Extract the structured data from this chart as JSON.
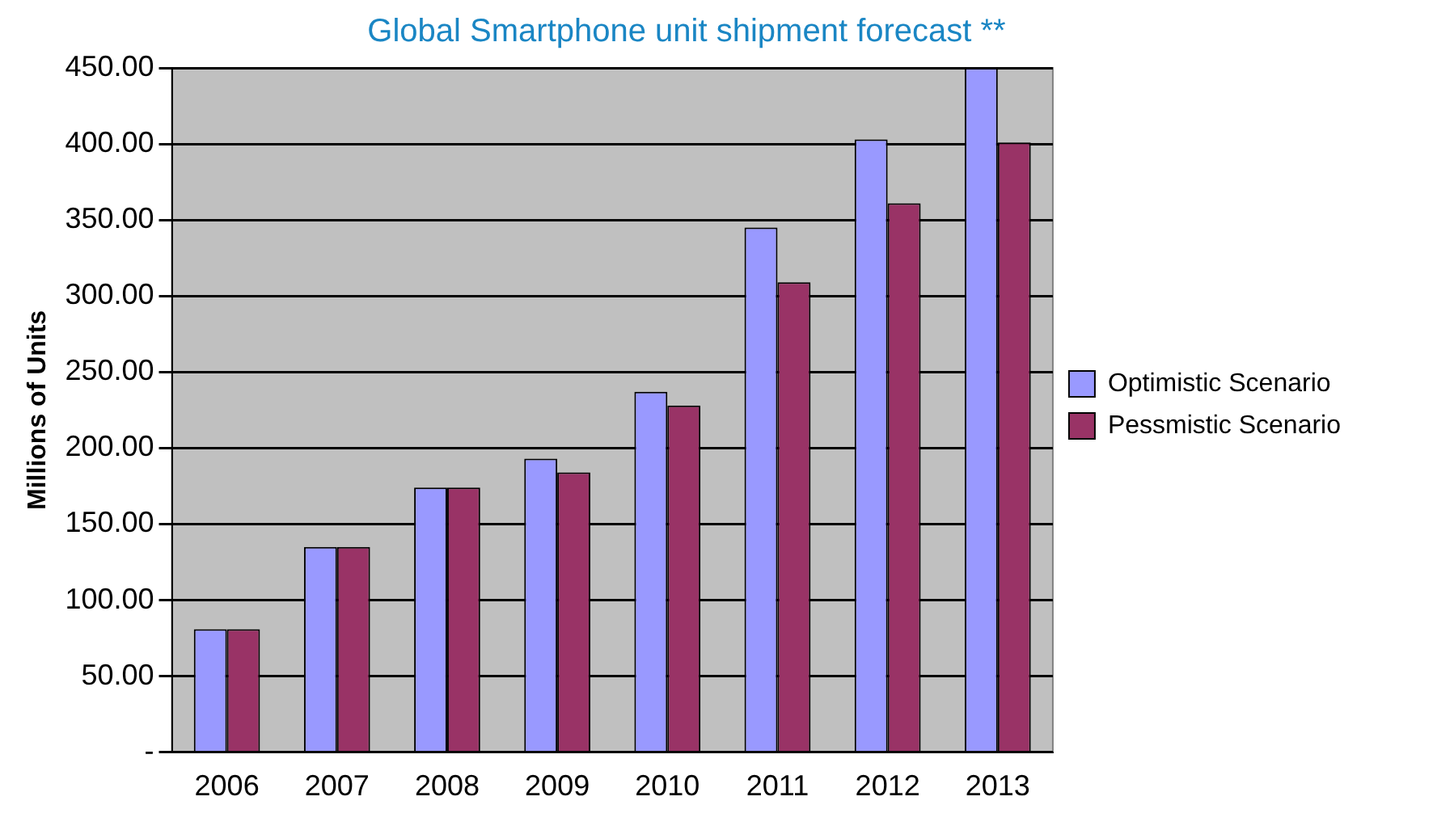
{
  "chart_data": {
    "type": "bar",
    "title": "Global Smartphone unit shipment forecast **",
    "ylabel": "Millions of Units",
    "categories": [
      "2006",
      "2007",
      "2008",
      "2009",
      "2010",
      "2011",
      "2012",
      "2013"
    ],
    "series": [
      {
        "name": "Optimistic Scenario",
        "color": "#9999ff",
        "values": [
          81,
          135,
          174,
          193,
          237,
          345,
          403,
          450
        ]
      },
      {
        "name": "Pessmistic Scenario",
        "color": "#993366",
        "values": [
          81,
          135,
          174,
          184,
          228,
          309,
          361,
          401
        ]
      }
    ],
    "ylim": [
      0,
      450
    ],
    "yticks": [
      {
        "value": 0,
        "label": "-"
      },
      {
        "value": 50,
        "label": "50.00"
      },
      {
        "value": 100,
        "label": "100.00"
      },
      {
        "value": 150,
        "label": "150.00"
      },
      {
        "value": 200,
        "label": "200.00"
      },
      {
        "value": 250,
        "label": "250.00"
      },
      {
        "value": 300,
        "label": "300.00"
      },
      {
        "value": 350,
        "label": "350.00"
      },
      {
        "value": 400,
        "label": "400.00"
      },
      {
        "value": 450,
        "label": "450.00"
      }
    ],
    "grid": "y",
    "legend": "right"
  }
}
